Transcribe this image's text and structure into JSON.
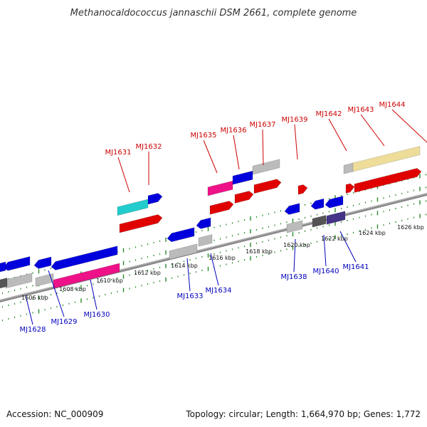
{
  "title": "Methanocaldococcus jannaschii DSM 2661, complete genome",
  "footer": {
    "accession": "Accession: NC_000909",
    "summary": "Topology: circular; Length: 1,664,970 bp; Genes: 1,772"
  },
  "colors": {
    "forward_label": "#cc0000",
    "reverse_label": "#0000bb",
    "tick": "#2a8a2a",
    "backbone": "#888888"
  },
  "scale_ticks": [
    "1606 kbp",
    "1608 kbp",
    "1610 kbp",
    "1612 kbp",
    "1614 kbp",
    "1616 kbp",
    "1618 kbp",
    "1620 kbp",
    "1622 kbp",
    "1624 kbp",
    "1626 kbp"
  ],
  "forward_genes": [
    "MJ1631",
    "MJ1632",
    "MJ1635",
    "MJ1636",
    "MJ1637",
    "MJ1639",
    "MJ1642",
    "MJ1643",
    "MJ1644"
  ],
  "reverse_genes": [
    "MJ1628",
    "MJ1629",
    "MJ1630",
    "MJ1633",
    "MJ1634",
    "MJ1638",
    "MJ1640",
    "MJ1641"
  ]
}
